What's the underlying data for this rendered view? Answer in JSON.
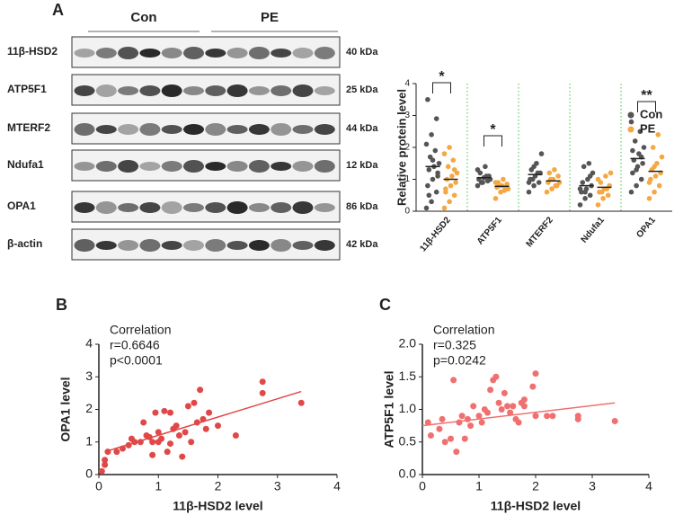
{
  "blot": {
    "panel": "A",
    "groups": [
      "Con",
      "PE"
    ],
    "rows": [
      {
        "protein": "11β-HSD2",
        "size": "40 kDa"
      },
      {
        "protein": "ATP5F1",
        "size": "25 kDa"
      },
      {
        "protein": "MTERF2",
        "size": "44 kDa"
      },
      {
        "protein": "Ndufa1",
        "size": "12 kDa"
      },
      {
        "protein": "OPA1",
        "size": "86 kDa"
      },
      {
        "protein": "β-actin",
        "size": "42 kDa"
      }
    ]
  },
  "chart_data": [
    {
      "type": "strip",
      "ylabel": "Relative protein level",
      "categories": [
        "11β-HSD2",
        "ATP5F1",
        "MTERF2",
        "Ndufa1",
        "OPA1"
      ],
      "ylim": [
        0,
        4
      ],
      "yticks": [
        0,
        1,
        2,
        3,
        4
      ],
      "legend": "right",
      "annotations": [
        "*",
        "*",
        "**"
      ],
      "series": [
        {
          "name": "Con",
          "color": "#555555",
          "mean": [
            1.4,
            1.05,
            1.15,
            0.8,
            1.65
          ],
          "values": [
            [
              0.1,
              0.3,
              0.6,
              0.8,
              1.0,
              1.2,
              1.3,
              1.4,
              1.5,
              1.7,
              1.9,
              2.1,
              2.4,
              2.9,
              3.5,
              1.6,
              1.1,
              0.5
            ],
            [
              0.8,
              0.9,
              0.95,
              1.0,
              1.05,
              1.1,
              1.2,
              1.4,
              1.0,
              0.9,
              1.1,
              1.3
            ],
            [
              0.6,
              0.8,
              0.9,
              1.0,
              1.1,
              1.2,
              1.3,
              1.5,
              1.8,
              1.0,
              1.2,
              0.9,
              1.4
            ],
            [
              0.2,
              0.4,
              0.5,
              0.6,
              0.7,
              0.8,
              0.9,
              1.0,
              1.2,
              1.4,
              1.5,
              0.7,
              0.6,
              1.1
            ],
            [
              0.6,
              0.8,
              1.0,
              1.2,
              1.4,
              1.5,
              1.6,
              1.8,
              2.0,
              2.2,
              2.5,
              2.8,
              1.3,
              1.7,
              1.9
            ]
          ]
        },
        {
          "name": "PE",
          "color": "#f5a742",
          "mean": [
            1.0,
            0.78,
            0.95,
            0.75,
            1.25
          ],
          "values": [
            [
              0.1,
              0.3,
              0.5,
              0.7,
              0.8,
              0.9,
              1.0,
              1.1,
              1.2,
              1.4,
              1.6,
              1.8,
              2.0,
              1.3,
              0.6
            ],
            [
              0.4,
              0.6,
              0.7,
              0.75,
              0.8,
              0.85,
              0.9,
              1.0,
              0.7,
              0.8,
              0.65,
              0.9
            ],
            [
              0.6,
              0.7,
              0.8,
              0.9,
              1.0,
              1.1,
              1.2,
              1.3,
              0.9,
              1.0,
              0.8
            ],
            [
              0.2,
              0.4,
              0.5,
              0.6,
              0.7,
              0.8,
              0.9,
              1.1,
              1.2,
              0.6,
              0.7,
              1.0
            ],
            [
              0.4,
              0.6,
              0.8,
              1.0,
              1.1,
              1.2,
              1.3,
              1.5,
              1.7,
              2.0,
              2.4,
              0.9,
              1.4
            ]
          ]
        }
      ]
    },
    {
      "type": "scatter",
      "panel": "B",
      "xlabel": "11β-HSD2 level",
      "ylabel": "OPA1 level",
      "color": "#e04848",
      "annotations": [
        "Correlation",
        "r=0.6646",
        "p<0.0001"
      ],
      "xlim": [
        0,
        4
      ],
      "xticks": [
        0,
        1,
        2,
        3,
        4
      ],
      "ylim": [
        0,
        4
      ],
      "yticks": [
        0,
        1,
        2,
        3,
        4
      ],
      "x": [
        0.05,
        0.1,
        0.1,
        0.15,
        0.3,
        0.4,
        0.5,
        0.55,
        0.6,
        0.7,
        0.75,
        0.8,
        0.85,
        0.9,
        0.95,
        1.0,
        1.05,
        1.1,
        1.15,
        1.2,
        1.25,
        1.3,
        1.35,
        1.4,
        1.45,
        1.5,
        1.55,
        1.6,
        1.65,
        1.7,
        1.75,
        1.8,
        1.85,
        1.0,
        0.9,
        1.2,
        2.0,
        2.3,
        2.75,
        2.75,
        3.4
      ],
      "y": [
        0.1,
        0.45,
        0.3,
        0.7,
        0.7,
        0.8,
        0.9,
        1.1,
        1.0,
        1.0,
        1.6,
        1.2,
        1.15,
        1.0,
        1.9,
        1.3,
        1.1,
        1.95,
        0.7,
        1.9,
        1.4,
        1.5,
        1.2,
        0.55,
        1.3,
        2.1,
        1.0,
        2.2,
        1.6,
        2.6,
        1.7,
        1.4,
        1.9,
        1.0,
        0.6,
        0.95,
        1.5,
        1.2,
        2.85,
        2.5,
        2.2
      ],
      "trend": {
        "x": [
          0.1,
          3.4
        ],
        "y": [
          0.7,
          2.55
        ]
      }
    },
    {
      "type": "scatter",
      "panel": "C",
      "xlabel": "11β-HSD2 level",
      "ylabel": "ATP5F1 level",
      "color": "#f07070",
      "annotations": [
        "Correlation",
        "r=0.325",
        "p=0.0242"
      ],
      "xlim": [
        0,
        4
      ],
      "xticks": [
        0,
        1,
        2,
        3,
        4
      ],
      "ylim": [
        0,
        2
      ],
      "yticks": [
        {
          "value": 0,
          "label": "0.0"
        },
        0.5,
        {
          "value": 1,
          "label": "1.0"
        },
        1.5,
        {
          "value": 2,
          "label": "2.0"
        }
      ],
      "x": [
        0.1,
        0.15,
        0.3,
        0.35,
        0.4,
        0.5,
        0.55,
        0.6,
        0.65,
        0.7,
        0.75,
        0.8,
        0.85,
        0.9,
        1.0,
        1.05,
        1.1,
        1.15,
        1.2,
        1.25,
        1.3,
        1.35,
        1.4,
        1.45,
        1.5,
        1.55,
        1.6,
        1.65,
        1.7,
        1.75,
        1.8,
        1.95,
        2.0,
        2.0,
        2.2,
        2.3,
        2.75,
        2.75,
        3.4,
        1.8
      ],
      "y": [
        0.8,
        0.6,
        0.7,
        0.85,
        0.5,
        0.55,
        1.45,
        0.35,
        0.8,
        0.9,
        0.55,
        0.85,
        0.75,
        1.05,
        0.9,
        0.8,
        1.0,
        0.95,
        1.3,
        1.45,
        1.5,
        1.1,
        1.0,
        1.25,
        1.05,
        0.95,
        1.05,
        0.85,
        0.8,
        1.1,
        1.05,
        1.35,
        1.55,
        0.9,
        0.9,
        0.9,
        0.85,
        0.9,
        0.82,
        1.15
      ],
      "trend": {
        "x": [
          0,
          3.4
        ],
        "y": [
          0.75,
          1.1
        ]
      }
    }
  ]
}
